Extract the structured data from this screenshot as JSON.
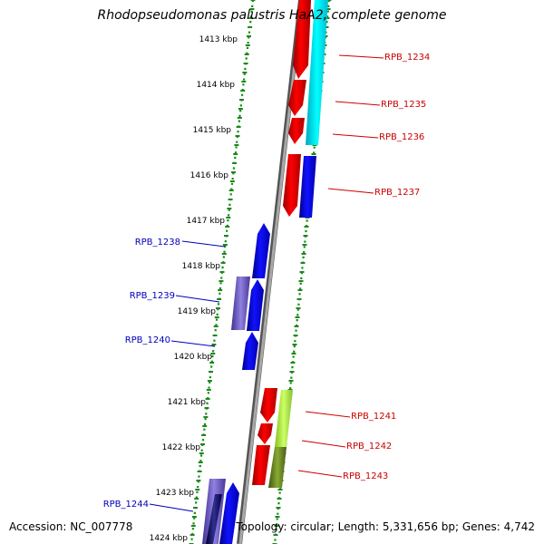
{
  "header": {
    "title": "Rhodopseudomonas palustris HaA2, complete genome"
  },
  "footer": {
    "accession": "Accession: NC_007778",
    "topology": "Topology: circular; Length: 5,331,656 bp; Genes: 4,742"
  },
  "colors": {
    "forward_strand": "#ff0000",
    "reverse_strand": "#0000ff",
    "forward_label": "#cc0000",
    "reverse_label": "#0000bb",
    "cyan_feature": "#00e0f0",
    "lime_feature": "#b0f040",
    "olive_feature": "#668822",
    "purple_feature": "#7060c0",
    "navy_feature": "#101060",
    "backbone": "#888888",
    "tick": "#1a8a1a"
  },
  "kbp_ticks": [
    "1413 kbp",
    "1414 kbp",
    "1415 kbp",
    "1416 kbp",
    "1417 kbp",
    "1418 kbp",
    "1419 kbp",
    "1420 kbp",
    "1421 kbp",
    "1422 kbp",
    "1423 kbp",
    "1424 kbp"
  ],
  "forward_genes": [
    "RPB_1234",
    "RPB_1235",
    "RPB_1236",
    "RPB_1237",
    "RPB_1241",
    "RPB_1242",
    "RPB_1243"
  ],
  "reverse_genes": [
    "RPB_1238",
    "RPB_1239",
    "RPB_1240",
    "RPB_1244"
  ]
}
